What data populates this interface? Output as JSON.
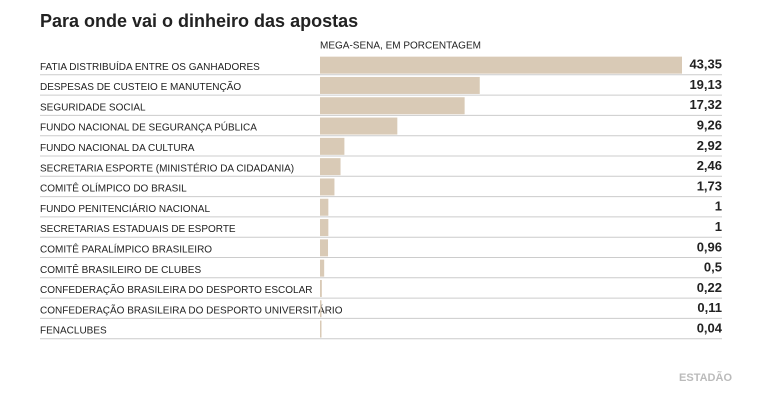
{
  "chart_data": {
    "type": "bar",
    "orientation": "horizontal",
    "title": "Para onde vai o dinheiro das apostas",
    "subtitle": "MEGA-SENA, EM PORCENTAGEM",
    "source": "ESTADÃO",
    "color": "#d9cab6",
    "categories": [
      "FATIA DISTRIBUÍDA ENTRE OS GANHADORES",
      "DESPESAS DE CUSTEIO E MANUTENÇÃO",
      "SEGURIDADE SOCIAL",
      "FUNDO NACIONAL DE SEGURANÇA PÚBLICA",
      "FUNDO NACIONAL DA CULTURA",
      "SECRETARIA ESPORTE (MINISTÉRIO DA CIDADANIA)",
      "COMITÊ OLÍMPICO DO BRASIL",
      "FUNDO PENITENCIÁRIO NACIONAL",
      "SECRETARIAS ESTADUAIS DE ESPORTE",
      "COMITÊ PARALÍMPICO BRASILEIRO",
      "COMITÊ BRASILEIRO DE CLUBES",
      "CONFEDERAÇÃO BRASILEIRA DO DESPORTO ESCOLAR",
      "CONFEDERAÇÃO BRASILEIRA DO DESPORTO UNIVERSITÁRIO",
      "FENACLUBES"
    ],
    "values": [
      43.35,
      19.13,
      17.32,
      9.26,
      2.92,
      2.46,
      1.73,
      1,
      1,
      0.96,
      0.5,
      0.22,
      0.11,
      0.04
    ],
    "value_labels": [
      "43,35",
      "19,13",
      "17,32",
      "9,26",
      "2,92",
      "2,46",
      "1,73",
      "1",
      "1",
      "0,96",
      "0,5",
      "0,22",
      "0,11",
      "0,04"
    ]
  }
}
